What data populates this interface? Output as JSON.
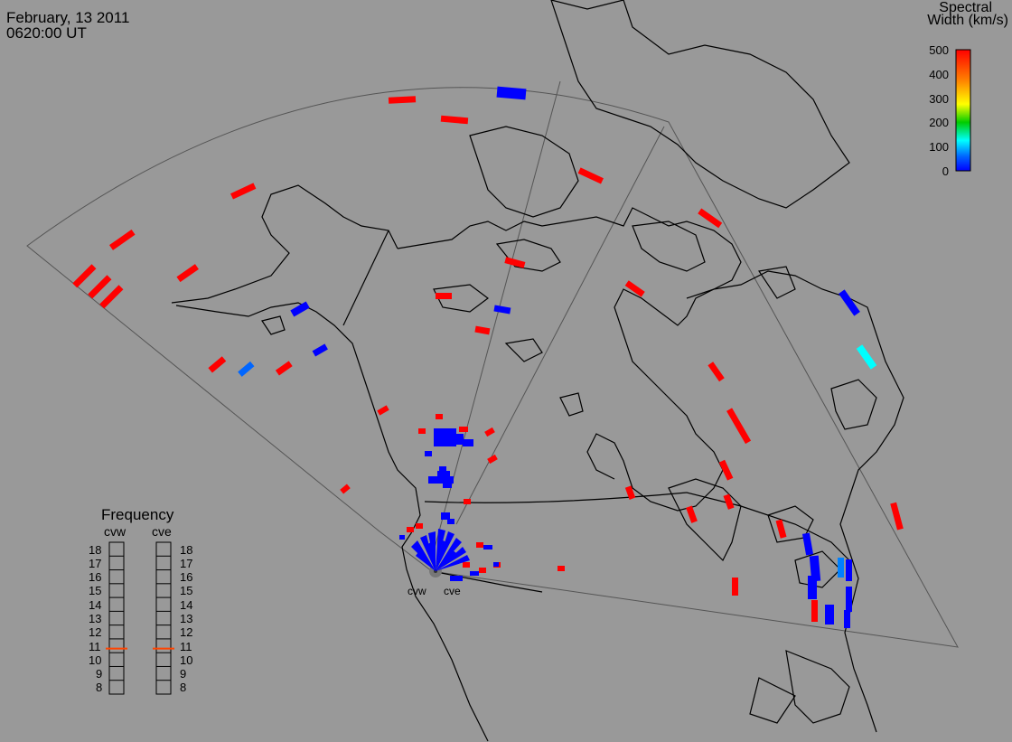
{
  "header": {
    "date": "February, 13 2011",
    "time": "0620:00 UT"
  },
  "colorbar": {
    "title_line1": "Spectral",
    "title_line2": "Width (km/s)",
    "ticks": [
      "500",
      "400",
      "300",
      "200",
      "100",
      "0"
    ],
    "stops": [
      "#ff0000",
      "#ff8000",
      "#ffff00",
      "#00cc00",
      "#00ffff",
      "#0066ff",
      "#0000ff"
    ]
  },
  "frequency": {
    "title": "Frequency",
    "columns": [
      "cvw",
      "cve"
    ],
    "levels": [
      "18",
      "17",
      "16",
      "15",
      "14",
      "13",
      "12",
      "11",
      "10",
      "9",
      "8"
    ],
    "cvw_value": 10.8,
    "cve_value": 10.8,
    "marker_color": "#ff4400"
  },
  "radars": [
    "cvw",
    "cve"
  ]
}
